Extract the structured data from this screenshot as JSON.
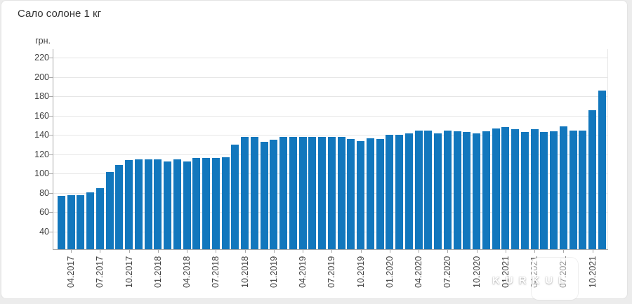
{
  "title": "Сало солоне 1 кг",
  "watermark": "KURKUL",
  "chart_data": {
    "type": "bar",
    "title": "Сало солоне 1 кг",
    "xlabel": "",
    "ylabel": "грн.",
    "bar_color": "#1277bd",
    "grid": true,
    "legend": false,
    "ylim": [
      22,
      229
    ],
    "y_ticks": [
      220,
      200,
      180,
      160,
      140,
      120,
      100,
      80,
      60,
      40
    ],
    "x_tick_labels": [
      "04.2017",
      "07.2017",
      "10.2017",
      "01.2018",
      "04.2018",
      "07.2018",
      "10.2018",
      "01.2019",
      "04.2019",
      "07.2019",
      "10.2019",
      "01.2020",
      "04.2020",
      "07.2020",
      "10.2020",
      "01.2021",
      "04.2021",
      "07.2021",
      "10.2021"
    ],
    "categories": [
      "03.2017",
      "04.2017",
      "05.2017",
      "06.2017",
      "07.2017",
      "08.2017",
      "09.2017",
      "10.2017",
      "11.2017",
      "12.2017",
      "01.2018",
      "02.2018",
      "03.2018",
      "04.2018",
      "05.2018",
      "06.2018",
      "07.2018",
      "08.2018",
      "09.2018",
      "10.2018",
      "11.2018",
      "12.2018",
      "01.2019",
      "02.2019",
      "03.2019",
      "04.2019",
      "05.2019",
      "06.2019",
      "07.2019",
      "08.2019",
      "09.2019",
      "10.2019",
      "11.2019",
      "12.2019",
      "01.2020",
      "02.2020",
      "03.2020",
      "04.2020",
      "05.2020",
      "06.2020",
      "07.2020",
      "08.2020",
      "09.2020",
      "10.2020",
      "11.2020",
      "12.2020",
      "01.2021",
      "02.2021",
      "03.2021",
      "04.2021",
      "05.2021",
      "06.2021",
      "07.2021",
      "08.2021",
      "09.2021",
      "10.2021",
      "11.2021"
    ],
    "values": [
      77,
      78,
      78,
      81,
      85,
      102,
      109,
      114,
      115,
      115,
      115,
      113,
      115,
      113,
      116,
      116,
      116,
      117,
      130,
      138,
      138,
      133,
      135,
      138,
      138,
      138,
      138,
      138,
      138,
      138,
      136,
      134,
      137,
      136,
      140,
      140,
      142,
      145,
      145,
      142,
      145,
      144,
      143,
      142,
      144,
      147,
      148,
      146,
      143,
      146,
      143,
      144,
      149,
      145,
      145,
      166,
      186
    ]
  }
}
